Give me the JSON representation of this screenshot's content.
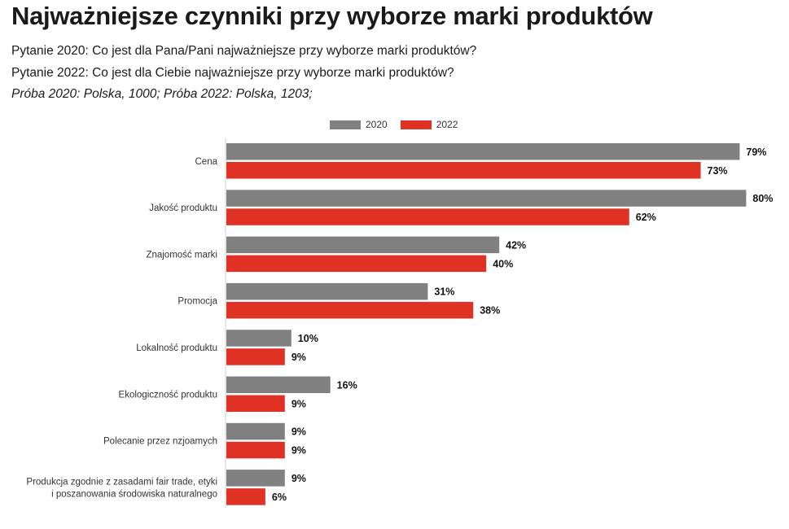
{
  "header": {
    "title": "Najważniejsze czynniki przy wyborze marki produktów",
    "question_2020": "Pytanie 2020: Co jest dla Pana/Pani najważniejsze przy wyborze marki produktów?",
    "question_2022": "Pytanie 2022: Co jest dla Ciebie najważniejsze przy wyborze marki produktów?",
    "sample": "Próba 2020: Polska, 1000; Próba 2022: Polska, 1203;"
  },
  "chart_data": {
    "type": "bar",
    "orientation": "horizontal",
    "title": "",
    "categories": [
      [
        "Cena"
      ],
      [
        "Jakość produktu"
      ],
      [
        "Znajomość marki"
      ],
      [
        "Promocja"
      ],
      [
        "Lokalność produktu"
      ],
      [
        "Ekologiczność produktu"
      ],
      [
        "Polecanie przez nzjoamych"
      ],
      [
        "Produkcja  zgodnie z zasadami fair trade, etyki",
        "i poszanowania środowiska naturalnego"
      ]
    ],
    "series": [
      {
        "name": "2020",
        "color": "#808080",
        "values": [
          79,
          80,
          42,
          31,
          10,
          16,
          9,
          9
        ]
      },
      {
        "name": "2022",
        "color": "#e03224",
        "values": [
          73,
          62,
          40,
          38,
          9,
          9,
          9,
          6
        ]
      }
    ],
    "value_suffix": "%",
    "xlim": [
      0,
      80
    ],
    "legend_position": "top-center",
    "grid": false
  }
}
